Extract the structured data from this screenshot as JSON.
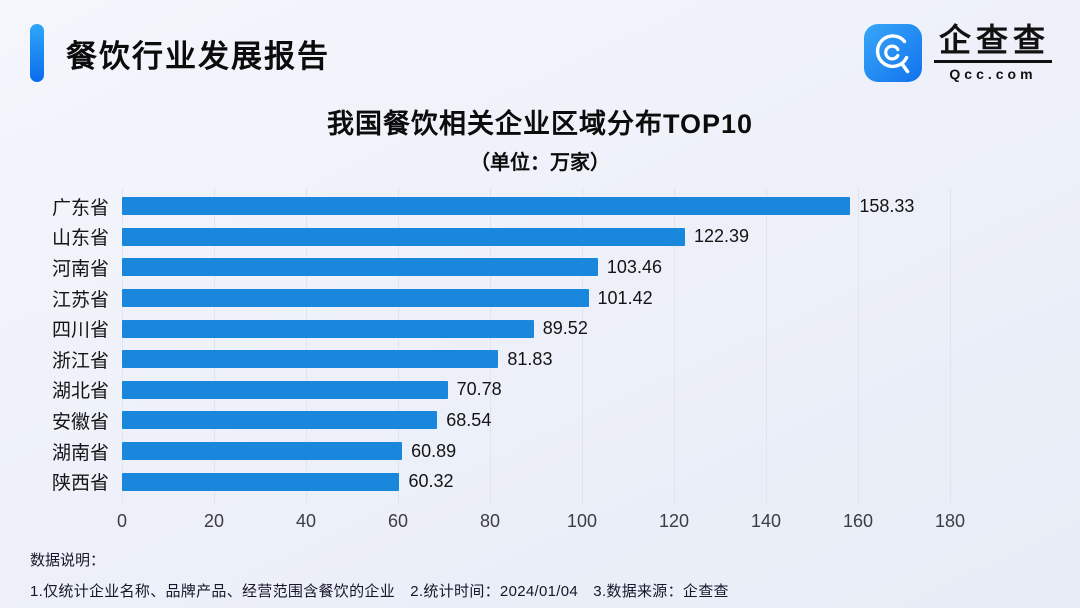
{
  "header": {
    "report_title": "餐饮行业发展报告",
    "logo": {
      "name": "企查查",
      "domain": "Qcc.com",
      "icon": "qcc-magnifier-icon",
      "icon_color_top": "#38a8f8",
      "icon_color_bottom": "#1272ee"
    },
    "accent_color_top": "#2ea7f9",
    "accent_color_bottom": "#0b6cec"
  },
  "chart_data": {
    "type": "bar",
    "orientation": "horizontal",
    "title": "我国餐饮相关企业区域分布TOP10",
    "subtitle": "（单位：万家）",
    "categories": [
      "广东省",
      "山东省",
      "河南省",
      "江苏省",
      "四川省",
      "浙江省",
      "湖北省",
      "安徽省",
      "湖南省",
      "陕西省"
    ],
    "values": [
      158.33,
      122.39,
      103.46,
      101.42,
      89.52,
      81.83,
      70.78,
      68.54,
      60.89,
      60.32
    ],
    "xlabel": "",
    "ylabel": "",
    "xlim": [
      0,
      180
    ],
    "xticks": [
      0,
      20,
      40,
      60,
      80,
      100,
      120,
      140,
      160,
      180
    ],
    "grid": true,
    "legend": "none",
    "bar_color": "#1987db",
    "value_labels": "outside-end"
  },
  "footer": {
    "heading": "数据说明：",
    "notes": "1.仅统计企业名称、品牌产品、经营范围含餐饮的企业　2.统计时间：2024/01/04　3.数据来源：企查查"
  }
}
